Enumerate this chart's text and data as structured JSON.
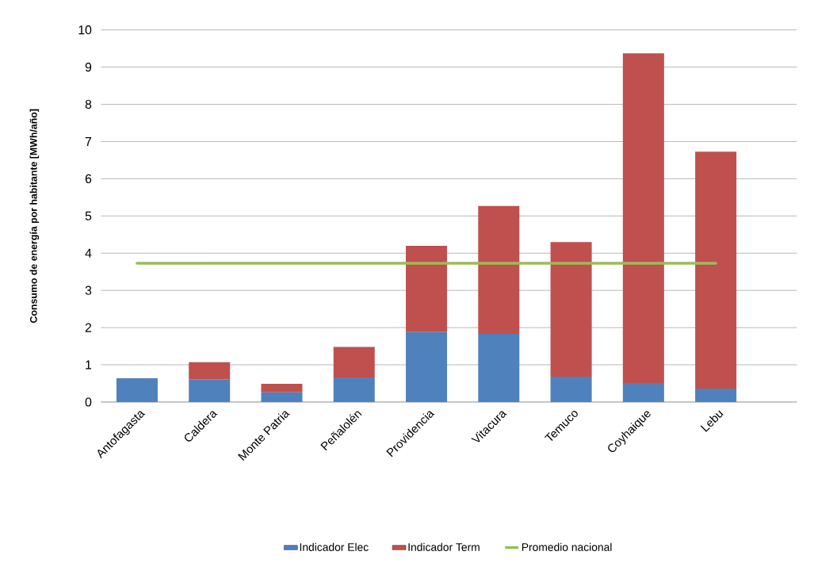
{
  "chart_data": {
    "type": "bar",
    "stacked": true,
    "ylabel": "Consumo de energía por habitante [MWh/año]",
    "categories": [
      "Antofagasta",
      "Caldera",
      "Monte Patria",
      "Peñalolén",
      "Providencia",
      "Vitacura",
      "Temuco",
      "Coyhaique",
      "Lebu",
      null
    ],
    "series": [
      {
        "name": "Indicador Elec",
        "color": "#4f81bd",
        "values": [
          0.64,
          0.61,
          0.26,
          0.66,
          1.88,
          1.83,
          0.68,
          0.51,
          0.36,
          null
        ]
      },
      {
        "name": "Indicador Term",
        "color": "#c0504d",
        "values": [
          0,
          0.46,
          0.23,
          0.82,
          2.32,
          3.44,
          3.62,
          8.86,
          6.37,
          null
        ]
      },
      {
        "name": "Promedio nacional",
        "type": "line",
        "color": "#9bbb59",
        "values": [
          3.73,
          3.73,
          3.73,
          3.73,
          3.73,
          3.73,
          3.73,
          3.73,
          3.73,
          null
        ]
      }
    ],
    "ylim": [
      0,
      10
    ],
    "yticks": [
      0,
      1,
      2,
      3,
      4,
      5,
      6,
      7,
      8,
      9,
      10
    ],
    "grid": "y",
    "legend": "bottom",
    "marker": "none",
    "line_style": "solid"
  }
}
